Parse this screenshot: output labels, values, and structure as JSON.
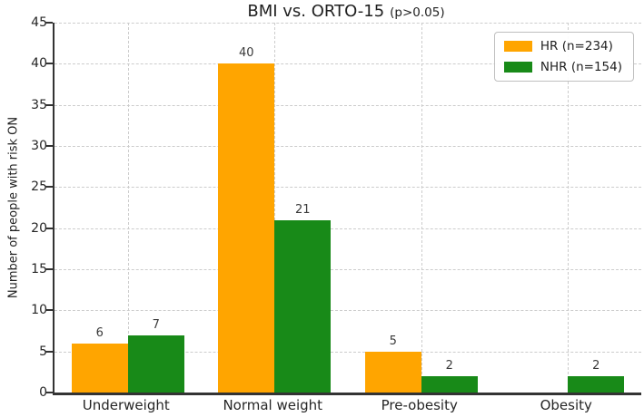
{
  "chart_data": {
    "type": "bar",
    "title": "BMI vs. ORTO-15",
    "title_suffix": "(p>0.05)",
    "ylabel": "Number of people with risk ON",
    "xlabel": "",
    "categories": [
      "Underweight",
      "Normal weight",
      "Pre-obesity",
      "Obesity"
    ],
    "series": [
      {
        "name": "HR (n=234)",
        "color": "#FFA500",
        "values": [
          6,
          40,
          5,
          0
        ]
      },
      {
        "name": "NHR (n=154)",
        "color": "#188A18",
        "values": [
          7,
          21,
          2,
          2
        ]
      }
    ],
    "bar_value_labels": [
      "6",
      "7",
      "40",
      "21",
      "5",
      "2",
      "2"
    ],
    "ylim": [
      0,
      45
    ],
    "yticks": [
      0,
      5,
      10,
      15,
      20,
      25,
      30,
      35,
      40,
      45
    ],
    "grid": true,
    "grid_style": "dashed",
    "legend_position": "upper right",
    "background_color": "#ffffff",
    "spine_color": "#333333"
  }
}
